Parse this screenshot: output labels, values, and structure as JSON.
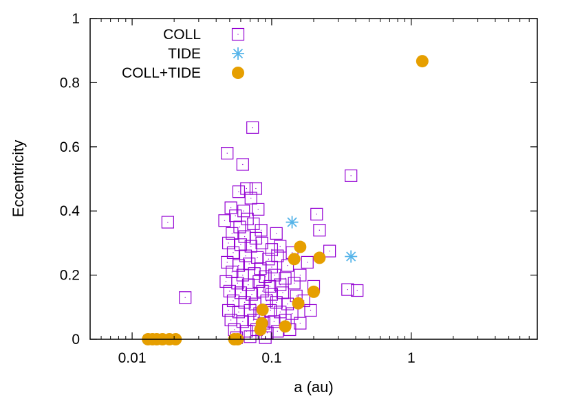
{
  "chart_data": {
    "type": "scatter",
    "xscale": "log",
    "xlim": [
      0.005,
      8
    ],
    "ylim": [
      0,
      1
    ],
    "xlabel": "a (au)",
    "ylabel": "Eccentricity",
    "xticks": [
      {
        "value": 0.01,
        "label": "0.01"
      },
      {
        "value": 0.1,
        "label": "0.1"
      },
      {
        "value": 1,
        "label": "1"
      }
    ],
    "yticks": [
      {
        "value": 0,
        "label": "0"
      },
      {
        "value": 0.2,
        "label": "0.2"
      },
      {
        "value": 0.4,
        "label": "0.4"
      },
      {
        "value": 0.6,
        "label": "0.6"
      },
      {
        "value": 0.8,
        "label": "0.8"
      },
      {
        "value": 1,
        "label": "1"
      }
    ],
    "legend_position": "top-left",
    "series": [
      {
        "name": "COLL",
        "marker": "open-square",
        "color": "#9400d3",
        "points": [
          [
            0.073,
            0.66
          ],
          [
            0.048,
            0.58
          ],
          [
            0.062,
            0.545
          ],
          [
            0.37,
            0.51
          ],
          [
            0.066,
            0.47
          ],
          [
            0.077,
            0.47
          ],
          [
            0.058,
            0.46
          ],
          [
            0.071,
            0.44
          ],
          [
            0.051,
            0.41
          ],
          [
            0.063,
            0.4
          ],
          [
            0.08,
            0.405
          ],
          [
            0.055,
            0.385
          ],
          [
            0.067,
            0.375
          ],
          [
            0.018,
            0.365
          ],
          [
            0.046,
            0.37
          ],
          [
            0.059,
            0.35
          ],
          [
            0.074,
            0.36
          ],
          [
            0.21,
            0.39
          ],
          [
            0.084,
            0.34
          ],
          [
            0.052,
            0.33
          ],
          [
            0.064,
            0.32
          ],
          [
            0.077,
            0.315
          ],
          [
            0.108,
            0.33
          ],
          [
            0.22,
            0.34
          ],
          [
            0.049,
            0.3
          ],
          [
            0.06,
            0.295
          ],
          [
            0.071,
            0.29
          ],
          [
            0.085,
            0.3
          ],
          [
            0.1,
            0.28
          ],
          [
            0.115,
            0.29
          ],
          [
            0.26,
            0.275
          ],
          [
            0.053,
            0.27
          ],
          [
            0.065,
            0.26
          ],
          [
            0.079,
            0.255
          ],
          [
            0.095,
            0.25
          ],
          [
            0.11,
            0.26
          ],
          [
            0.14,
            0.27
          ],
          [
            0.048,
            0.24
          ],
          [
            0.058,
            0.23
          ],
          [
            0.069,
            0.235
          ],
          [
            0.083,
            0.22
          ],
          [
            0.1,
            0.225
          ],
          [
            0.13,
            0.23
          ],
          [
            0.18,
            0.24
          ],
          [
            0.052,
            0.21
          ],
          [
            0.062,
            0.2
          ],
          [
            0.075,
            0.205
          ],
          [
            0.09,
            0.195
          ],
          [
            0.105,
            0.2
          ],
          [
            0.125,
            0.19
          ],
          [
            0.16,
            0.2
          ],
          [
            0.047,
            0.18
          ],
          [
            0.057,
            0.175
          ],
          [
            0.068,
            0.17
          ],
          [
            0.081,
            0.18
          ],
          [
            0.097,
            0.165
          ],
          [
            0.115,
            0.17
          ],
          [
            0.145,
            0.175
          ],
          [
            0.2,
            0.165
          ],
          [
            0.05,
            0.15
          ],
          [
            0.06,
            0.145
          ],
          [
            0.072,
            0.14
          ],
          [
            0.086,
            0.15
          ],
          [
            0.1,
            0.14
          ],
          [
            0.12,
            0.145
          ],
          [
            0.15,
            0.135
          ],
          [
            0.35,
            0.155
          ],
          [
            0.41,
            0.152
          ],
          [
            0.053,
            0.12
          ],
          [
            0.064,
            0.115
          ],
          [
            0.076,
            0.11
          ],
          [
            0.092,
            0.12
          ],
          [
            0.108,
            0.115
          ],
          [
            0.13,
            0.11
          ],
          [
            0.17,
            0.12
          ],
          [
            0.024,
            0.13
          ],
          [
            0.049,
            0.09
          ],
          [
            0.058,
            0.085
          ],
          [
            0.07,
            0.09
          ],
          [
            0.082,
            0.08
          ],
          [
            0.098,
            0.09
          ],
          [
            0.115,
            0.085
          ],
          [
            0.14,
            0.08
          ],
          [
            0.19,
            0.09
          ],
          [
            0.051,
            0.06
          ],
          [
            0.062,
            0.055
          ],
          [
            0.074,
            0.06
          ],
          [
            0.088,
            0.05
          ],
          [
            0.104,
            0.055
          ],
          [
            0.125,
            0.06
          ],
          [
            0.16,
            0.05
          ],
          [
            0.054,
            0.03
          ],
          [
            0.066,
            0.025
          ],
          [
            0.078,
            0.03
          ],
          [
            0.093,
            0.02
          ],
          [
            0.11,
            0.025
          ],
          [
            0.135,
            0.03
          ],
          [
            0.056,
            0.005
          ],
          [
            0.07,
            0.008
          ],
          [
            0.09,
            0.005
          ]
        ]
      },
      {
        "name": "TIDE",
        "marker": "asterisk",
        "color": "#56b4e9",
        "points": [
          [
            0.14,
            0.365
          ],
          [
            0.37,
            0.258
          ],
          [
            0.013,
            0.0
          ]
        ]
      },
      {
        "name": "COLL+TIDE",
        "marker": "filled-circle",
        "color": "#e69f00",
        "points": [
          [
            1.2,
            0.867
          ],
          [
            0.16,
            0.288
          ],
          [
            0.145,
            0.25
          ],
          [
            0.22,
            0.254
          ],
          [
            0.2,
            0.148
          ],
          [
            0.155,
            0.112
          ],
          [
            0.086,
            0.092
          ],
          [
            0.085,
            0.05
          ],
          [
            0.083,
            0.03
          ],
          [
            0.125,
            0.04
          ],
          [
            0.013,
            0.0
          ],
          [
            0.014,
            0.0
          ],
          [
            0.015,
            0.0
          ],
          [
            0.0165,
            0.0
          ],
          [
            0.0185,
            0.0
          ],
          [
            0.0205,
            0.0
          ],
          [
            0.054,
            0.0
          ],
          [
            0.057,
            0.0
          ]
        ]
      }
    ]
  }
}
